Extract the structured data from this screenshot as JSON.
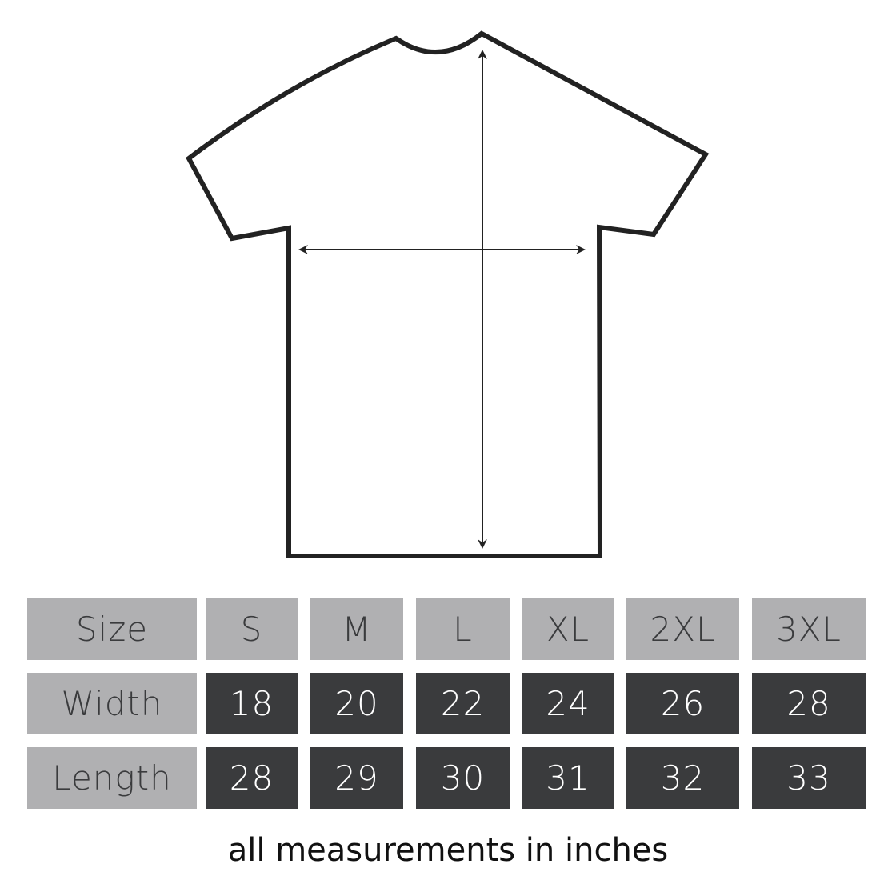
{
  "colors": {
    "header_cell": "#b0b0b2",
    "value_cell": "#3a3b3d",
    "outline": "#222222"
  },
  "diagram": {
    "garment": "t-shirt",
    "arrows": [
      "width",
      "length"
    ]
  },
  "table": {
    "header": [
      "Size",
      "S",
      "M",
      "L",
      "XL",
      "2XL",
      "3XL"
    ],
    "rows": [
      {
        "label": "Width",
        "values": [
          "18",
          "20",
          "22",
          "24",
          "26",
          "28"
        ]
      },
      {
        "label": "Length",
        "values": [
          "28",
          "29",
          "30",
          "31",
          "32",
          "33"
        ]
      }
    ]
  },
  "note": "all measurements in inches"
}
